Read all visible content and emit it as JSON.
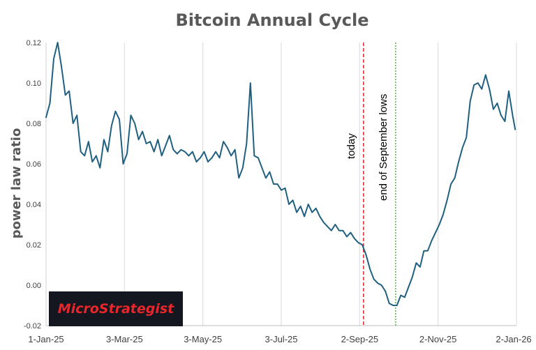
{
  "chart_data": {
    "type": "line",
    "title": "Bitcoin Annual Cycle",
    "xlabel": "",
    "ylabel": "power law ratio",
    "ylim": [
      -0.02,
      0.12
    ],
    "yticks": [
      "0.12",
      "0.10",
      "0.08",
      "0.06",
      "0.04",
      "0.02",
      "0.00",
      "-0.02"
    ],
    "ytick_values": [
      0.12,
      0.1,
      0.08,
      0.06,
      0.04,
      0.02,
      0.0,
      -0.02
    ],
    "xlim": [
      "2025-01-01",
      "2026-01-02"
    ],
    "xticks": [
      "1-Jan-25",
      "3-Mar-25",
      "3-May-25",
      "3-Jul-25",
      "2-Sep-25",
      "2-Nov-25",
      "2-Jan-26"
    ],
    "xtick_dates": [
      "2025-01-01",
      "2025-03-03",
      "2025-05-03",
      "2025-07-03",
      "2025-09-02",
      "2025-11-02",
      "2026-01-02"
    ],
    "grid": "vertical",
    "colors": {
      "series": "#1f5f80",
      "today": "#e0202a",
      "september": "#59b04a",
      "title": "#595959"
    },
    "annotations": [
      {
        "label": "today",
        "x": "2025-09-05",
        "style": "dashed",
        "color": "#e0202a"
      },
      {
        "label": "end of September lows",
        "x": "2025-09-30",
        "style": "dotted",
        "color": "#59b04a"
      }
    ],
    "series": [
      {
        "x": [
          "2025-01-01",
          "2025-01-04",
          "2025-01-07",
          "2025-01-10",
          "2025-01-13",
          "2025-01-16",
          "2025-01-19",
          "2025-01-22",
          "2025-01-25",
          "2025-01-28",
          "2025-01-31",
          "2025-02-03",
          "2025-02-06",
          "2025-02-09",
          "2025-02-12",
          "2025-02-15",
          "2025-02-18",
          "2025-02-21",
          "2025-02-24",
          "2025-02-27",
          "2025-03-02",
          "2025-03-05",
          "2025-03-08",
          "2025-03-11",
          "2025-03-14",
          "2025-03-17",
          "2025-03-20",
          "2025-03-23",
          "2025-03-26",
          "2025-03-29",
          "2025-04-01",
          "2025-04-04",
          "2025-04-07",
          "2025-04-10",
          "2025-04-13",
          "2025-04-16",
          "2025-04-19",
          "2025-04-22",
          "2025-04-25",
          "2025-04-28",
          "2025-05-01",
          "2025-05-04",
          "2025-05-07",
          "2025-05-10",
          "2025-05-13",
          "2025-05-16",
          "2025-05-19",
          "2025-05-22",
          "2025-05-25",
          "2025-05-28",
          "2025-05-31",
          "2025-06-03",
          "2025-06-06",
          "2025-06-09",
          "2025-06-12",
          "2025-06-15",
          "2025-06-18",
          "2025-06-21",
          "2025-06-24",
          "2025-06-27",
          "2025-06-30",
          "2025-07-03",
          "2025-07-06",
          "2025-07-09",
          "2025-07-12",
          "2025-07-15",
          "2025-07-18",
          "2025-07-21",
          "2025-07-24",
          "2025-07-27",
          "2025-07-30",
          "2025-08-02",
          "2025-08-05",
          "2025-08-08",
          "2025-08-11",
          "2025-08-14",
          "2025-08-17",
          "2025-08-20",
          "2025-08-23",
          "2025-08-26",
          "2025-08-29",
          "2025-09-01",
          "2025-09-04",
          "2025-09-07",
          "2025-09-10",
          "2025-09-13",
          "2025-09-16",
          "2025-09-19",
          "2025-09-22",
          "2025-09-25",
          "2025-09-28",
          "2025-10-01",
          "2025-10-04",
          "2025-10-07",
          "2025-10-10",
          "2025-10-13",
          "2025-10-16",
          "2025-10-19",
          "2025-10-22",
          "2025-10-25",
          "2025-10-28",
          "2025-10-31",
          "2025-11-03",
          "2025-11-06",
          "2025-11-09",
          "2025-11-12",
          "2025-11-15",
          "2025-11-18",
          "2025-11-21",
          "2025-11-24",
          "2025-11-27",
          "2025-11-30",
          "2025-12-03",
          "2025-12-06",
          "2025-12-09",
          "2025-12-12",
          "2025-12-15",
          "2025-12-18",
          "2025-12-21",
          "2025-12-24",
          "2025-12-27",
          "2025-12-30",
          "2026-01-01"
        ],
        "values": [
          0.083,
          0.09,
          0.112,
          0.12,
          0.108,
          0.094,
          0.096,
          0.08,
          0.084,
          0.066,
          0.064,
          0.071,
          0.061,
          0.064,
          0.058,
          0.072,
          0.066,
          0.079,
          0.086,
          0.082,
          0.06,
          0.065,
          0.084,
          0.08,
          0.072,
          0.076,
          0.07,
          0.071,
          0.066,
          0.072,
          0.064,
          0.069,
          0.074,
          0.067,
          0.065,
          0.067,
          0.066,
          0.064,
          0.066,
          0.061,
          0.063,
          0.066,
          0.061,
          0.063,
          0.066,
          0.063,
          0.071,
          0.068,
          0.064,
          0.067,
          0.053,
          0.058,
          0.07,
          0.1,
          0.064,
          0.063,
          0.058,
          0.053,
          0.056,
          0.05,
          0.05,
          0.047,
          0.048,
          0.04,
          0.042,
          0.036,
          0.039,
          0.034,
          0.04,
          0.036,
          0.038,
          0.034,
          0.031,
          0.029,
          0.027,
          0.03,
          0.027,
          0.027,
          0.024,
          0.026,
          0.023,
          0.021,
          0.02,
          0.015,
          0.008,
          0.003,
          0.001,
          0.0,
          -0.003,
          -0.009,
          -0.01,
          -0.01,
          -0.005,
          -0.006,
          -0.001,
          0.004,
          0.011,
          0.009,
          0.017,
          0.017,
          0.022,
          0.026,
          0.03,
          0.035,
          0.042,
          0.05,
          0.053,
          0.061,
          0.068,
          0.073,
          0.091,
          0.099,
          0.1,
          0.097,
          0.104,
          0.097,
          0.087,
          0.09,
          0.084,
          0.081,
          0.096,
          0.084,
          0.077
        ]
      }
    ]
  },
  "branding": {
    "logo_text": "MicroStrategist"
  }
}
